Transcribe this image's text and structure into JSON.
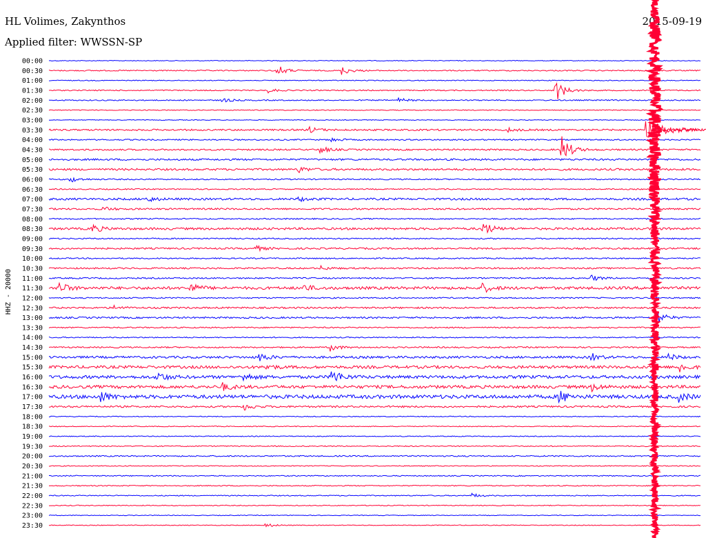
{
  "header": {
    "station": "HL Volimes, Zakynthos",
    "date": "2015-09-19",
    "filter_label": "Applied filter: WWSSN-SP"
  },
  "channel_label": "HHZ - 20000",
  "colors": {
    "blue": "#0000ff",
    "red": "#ff0033"
  },
  "chart_data": {
    "type": "line",
    "title": "HL Volimes, Zakynthos",
    "subtitle": "Applied filter: WWSSN-SP",
    "ylabel": "HHZ - 20000",
    "xlabel": "",
    "grid": false,
    "legend": "none",
    "row_labels": [
      "00:00",
      "00:30",
      "01:00",
      "01:30",
      "02:00",
      "02:30",
      "03:00",
      "03:30",
      "04:00",
      "04:30",
      "05:00",
      "05:30",
      "06:00",
      "06:30",
      "07:00",
      "07:30",
      "08:00",
      "08:30",
      "09:00",
      "09:30",
      "10:00",
      "10:30",
      "11:00",
      "11:30",
      "12:00",
      "12:30",
      "13:00",
      "13:30",
      "14:00",
      "14:30",
      "15:00",
      "15:30",
      "16:00",
      "16:30",
      "17:00",
      "17:30",
      "18:00",
      "18:30",
      "19:00",
      "19:30",
      "20:00",
      "20:30",
      "21:00",
      "21:30",
      "22:00",
      "22:30",
      "23:00",
      "23:30"
    ],
    "row_colors": [
      "blue",
      "red",
      "blue",
      "red",
      "blue",
      "red",
      "blue",
      "red",
      "blue",
      "red",
      "blue",
      "red",
      "blue",
      "red",
      "blue",
      "red",
      "blue",
      "red",
      "blue",
      "red",
      "blue",
      "red",
      "blue",
      "red",
      "blue",
      "red",
      "blue",
      "red",
      "blue",
      "red",
      "blue",
      "red",
      "blue",
      "red",
      "blue",
      "red",
      "blue",
      "red",
      "blue",
      "red",
      "blue",
      "red",
      "blue",
      "red",
      "blue",
      "red",
      "blue",
      "red"
    ],
    "noise_level": [
      0.5,
      0.8,
      0.6,
      0.8,
      0.8,
      0.6,
      0.5,
      1.2,
      0.9,
      1.1,
      1.3,
      1.4,
      0.9,
      0.8,
      1.5,
      1.2,
      0.9,
      1.6,
      0.9,
      1.2,
      0.9,
      1.1,
      1.0,
      2.0,
      0.9,
      1.2,
      1.2,
      0.9,
      0.8,
      1.0,
      1.6,
      2.0,
      2.2,
      2.2,
      2.6,
      1.3,
      0.6,
      0.6,
      0.6,
      0.7,
      0.9,
      0.6,
      0.7,
      0.7,
      0.7,
      0.6,
      0.5,
      0.5
    ],
    "events_minutes": [
      {
        "row": "00:30",
        "minute": 10.5,
        "amp": 8
      },
      {
        "row": "00:30",
        "minute": 13.5,
        "amp": 6
      },
      {
        "row": "01:30",
        "minute": 23.3,
        "amp": 18
      },
      {
        "row": "01:30",
        "minute": 10.1,
        "amp": 3
      },
      {
        "row": "02:00",
        "minute": 8.0,
        "amp": 3
      },
      {
        "row": "02:00",
        "minute": 16.1,
        "amp": 3
      },
      {
        "row": "03:30",
        "minute": 12.0,
        "amp": 4
      },
      {
        "row": "03:30",
        "minute": 21.0,
        "amp": 4
      },
      {
        "row": "03:30",
        "minute": 27.5,
        "amp": 20
      },
      {
        "row": "04:00",
        "minute": 13.0,
        "amp": 3
      },
      {
        "row": "04:30",
        "minute": 12.5,
        "amp": 5
      },
      {
        "row": "04:30",
        "minute": 23.6,
        "amp": 22
      },
      {
        "row": "05:30",
        "minute": 11.5,
        "amp": 4
      },
      {
        "row": "06:00",
        "minute": 1.0,
        "amp": 4
      },
      {
        "row": "07:00",
        "minute": 4.5,
        "amp": 4
      },
      {
        "row": "07:00",
        "minute": 11.5,
        "amp": 3
      },
      {
        "row": "07:30",
        "minute": 2.5,
        "amp": 3
      },
      {
        "row": "08:30",
        "minute": 2.0,
        "amp": 6
      },
      {
        "row": "08:30",
        "minute": 20.0,
        "amp": 10
      },
      {
        "row": "09:30",
        "minute": 9.5,
        "amp": 4
      },
      {
        "row": "10:30",
        "minute": 12.5,
        "amp": 3
      },
      {
        "row": "11:00",
        "minute": 25.0,
        "amp": 4
      },
      {
        "row": "11:30",
        "minute": 0.4,
        "amp": 10
      },
      {
        "row": "11:30",
        "minute": 6.5,
        "amp": 7
      },
      {
        "row": "11:30",
        "minute": 11.7,
        "amp": 5
      },
      {
        "row": "11:30",
        "minute": 20.0,
        "amp": 6
      },
      {
        "row": "12:30",
        "minute": 3.0,
        "amp": 3
      },
      {
        "row": "13:00",
        "minute": 28.0,
        "amp": 10
      },
      {
        "row": "14:30",
        "minute": 13.0,
        "amp": 5
      },
      {
        "row": "15:00",
        "minute": 9.7,
        "amp": 6
      },
      {
        "row": "15:00",
        "minute": 25.0,
        "amp": 5
      },
      {
        "row": "15:00",
        "minute": 28.5,
        "amp": 5
      },
      {
        "row": "15:30",
        "minute": 29.0,
        "amp": 8
      },
      {
        "row": "15:30",
        "minute": 10.0,
        "amp": 4
      },
      {
        "row": "16:00",
        "minute": 13.0,
        "amp": 12
      },
      {
        "row": "16:00",
        "minute": 5.0,
        "amp": 7
      },
      {
        "row": "16:00",
        "minute": 9.0,
        "amp": 5
      },
      {
        "row": "16:30",
        "minute": 8.0,
        "amp": 5
      },
      {
        "row": "16:30",
        "minute": 25.0,
        "amp": 5
      },
      {
        "row": "17:00",
        "minute": 2.4,
        "amp": 7
      },
      {
        "row": "17:00",
        "minute": 23.5,
        "amp": 9
      },
      {
        "row": "17:00",
        "minute": 29.0,
        "amp": 6
      },
      {
        "row": "17:30",
        "minute": 9.0,
        "amp": 5
      },
      {
        "row": "22:00",
        "minute": 19.5,
        "amp": 3
      },
      {
        "row": "23:30",
        "minute": 10.0,
        "amp": 3
      }
    ],
    "large_event": {
      "start_row": "03:30",
      "minute": 27.9,
      "end_row": "23:30",
      "peak_amplitude_rows": 6
    }
  }
}
